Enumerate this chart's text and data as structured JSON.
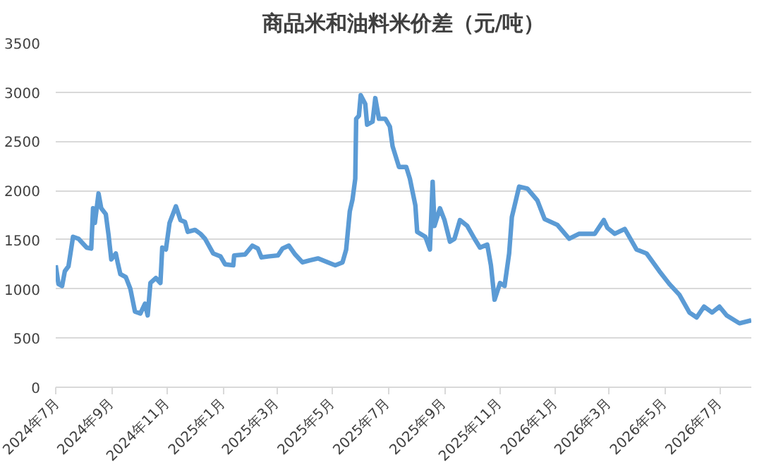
{
  "chart_data": {
    "type": "line",
    "title": "商品米和油料米价差（元/吨）",
    "x": [
      "2024-07-01",
      "2024-07-04",
      "2024-07-08",
      "2024-07-11",
      "2024-07-15",
      "2024-07-20",
      "2024-07-26",
      "2024-08-04",
      "2024-08-09",
      "2024-08-11",
      "2024-08-13",
      "2024-08-17",
      "2024-08-20",
      "2024-08-25",
      "2024-08-28",
      "2024-08-31",
      "2024-09-05",
      "2024-09-07",
      "2024-09-10",
      "2024-09-16",
      "2024-09-21",
      "2024-09-26",
      "2024-10-02",
      "2024-10-07",
      "2024-10-10",
      "2024-10-13",
      "2024-10-19",
      "2024-10-24",
      "2024-10-26",
      "2024-10-30",
      "2024-11-03",
      "2024-11-10",
      "2024-11-15",
      "2024-11-20",
      "2024-11-23",
      "2024-12-01",
      "2024-12-07",
      "2024-12-12",
      "2024-12-21",
      "2024-12-29",
      "2025-01-03",
      "2025-01-12",
      "2025-01-13",
      "2025-01-25",
      "2025-02-02",
      "2025-02-08",
      "2025-02-12",
      "2025-02-19",
      "2025-03-02",
      "2025-03-07",
      "2025-03-14",
      "2025-03-21",
      "2025-03-29",
      "2025-04-06",
      "2025-04-15",
      "2025-04-26",
      "2025-05-04",
      "2025-05-12",
      "2025-05-16",
      "2025-05-20",
      "2025-05-23",
      "2025-05-26",
      "2025-05-27",
      "2025-05-30",
      "2025-06-01",
      "2025-06-06",
      "2025-06-08",
      "2025-06-14",
      "2025-06-17",
      "2025-06-21",
      "2025-06-28",
      "2025-07-03",
      "2025-07-06",
      "2025-07-13",
      "2025-07-21",
      "2025-07-25",
      "2025-07-31",
      "2025-08-02",
      "2025-08-11",
      "2025-08-16",
      "2025-08-19",
      "2025-08-21",
      "2025-08-27",
      "2025-09-01",
      "2025-09-07",
      "2025-09-12",
      "2025-09-18",
      "2025-09-26",
      "2025-10-04",
      "2025-10-10",
      "2025-10-18",
      "2025-10-22",
      "2025-10-26",
      "2025-11-01",
      "2025-11-06",
      "2025-11-11",
      "2025-11-14",
      "2025-11-22",
      "2025-12-01",
      "2025-12-12",
      "2025-12-20",
      "2026-01-03",
      "2026-01-16",
      "2026-01-27",
      "2026-02-13",
      "2026-02-23",
      "2026-02-27",
      "2026-03-07",
      "2026-03-18",
      "2026-03-31",
      "2026-04-11",
      "2026-04-25",
      "2026-05-06",
      "2026-05-17",
      "2026-05-28",
      "2026-06-05",
      "2026-06-13",
      "2026-06-22",
      "2026-06-30",
      "2026-07-08",
      "2026-07-22",
      "2026-08-04"
    ],
    "series": [
      {
        "color": "#5b9bd5",
        "values": [
          1240,
          1050,
          1030,
          1180,
          1230,
          1530,
          1510,
          1420,
          1410,
          1820,
          1670,
          1970,
          1820,
          1760,
          1550,
          1300,
          1360,
          1270,
          1150,
          1120,
          1000,
          770,
          750,
          850,
          730,
          1060,
          1110,
          1060,
          1420,
          1400,
          1670,
          1840,
          1700,
          1680,
          1580,
          1600,
          1560,
          1510,
          1360,
          1330,
          1250,
          1240,
          1340,
          1350,
          1440,
          1410,
          1320,
          1330,
          1340,
          1410,
          1440,
          1350,
          1270,
          1290,
          1310,
          1270,
          1240,
          1270,
          1400,
          1790,
          1910,
          2120,
          2730,
          2760,
          2970,
          2880,
          2670,
          2700,
          2940,
          2730,
          2730,
          2650,
          2450,
          2240,
          2240,
          2120,
          1850,
          1580,
          1530,
          1400,
          2090,
          1640,
          1820,
          1700,
          1480,
          1510,
          1700,
          1640,
          1510,
          1420,
          1450,
          1240,
          890,
          1060,
          1030,
          1360,
          1730,
          2040,
          2020,
          1900,
          1710,
          1650,
          1510,
          1560,
          1560,
          1700,
          1620,
          1560,
          1610,
          1400,
          1360,
          1180,
          1050,
          940,
          760,
          710,
          820,
          760,
          820,
          730,
          650,
          680
        ]
      }
    ],
    "xlim": [
      "2024-07-01",
      "2026-08-04"
    ],
    "xticks": [
      {
        "value": "2024-07-01",
        "label": "2024年7月"
      },
      {
        "value": "2024-09-01",
        "label": "2024年9月"
      },
      {
        "value": "2024-11-01",
        "label": "2024年11月"
      },
      {
        "value": "2025-01-01",
        "label": "2025年1月"
      },
      {
        "value": "2025-03-01",
        "label": "2025年3月"
      },
      {
        "value": "2025-05-01",
        "label": "2025年5月"
      },
      {
        "value": "2025-07-01",
        "label": "2025年7月"
      },
      {
        "value": "2025-09-01",
        "label": "2025年9月"
      },
      {
        "value": "2025-11-01",
        "label": "2025年11月"
      },
      {
        "value": "2026-01-01",
        "label": "2026年1月"
      },
      {
        "value": "2026-03-01",
        "label": "2026年3月"
      },
      {
        "value": "2026-05-01",
        "label": "2026年5月"
      },
      {
        "value": "2026-07-01",
        "label": "2026年7月"
      }
    ],
    "ylim": [
      0,
      3500
    ],
    "yticks": [
      0,
      500,
      1000,
      1500,
      2000,
      2500,
      3000,
      3500
    ],
    "grid": "y",
    "marker": "none",
    "line_style": "solid"
  }
}
